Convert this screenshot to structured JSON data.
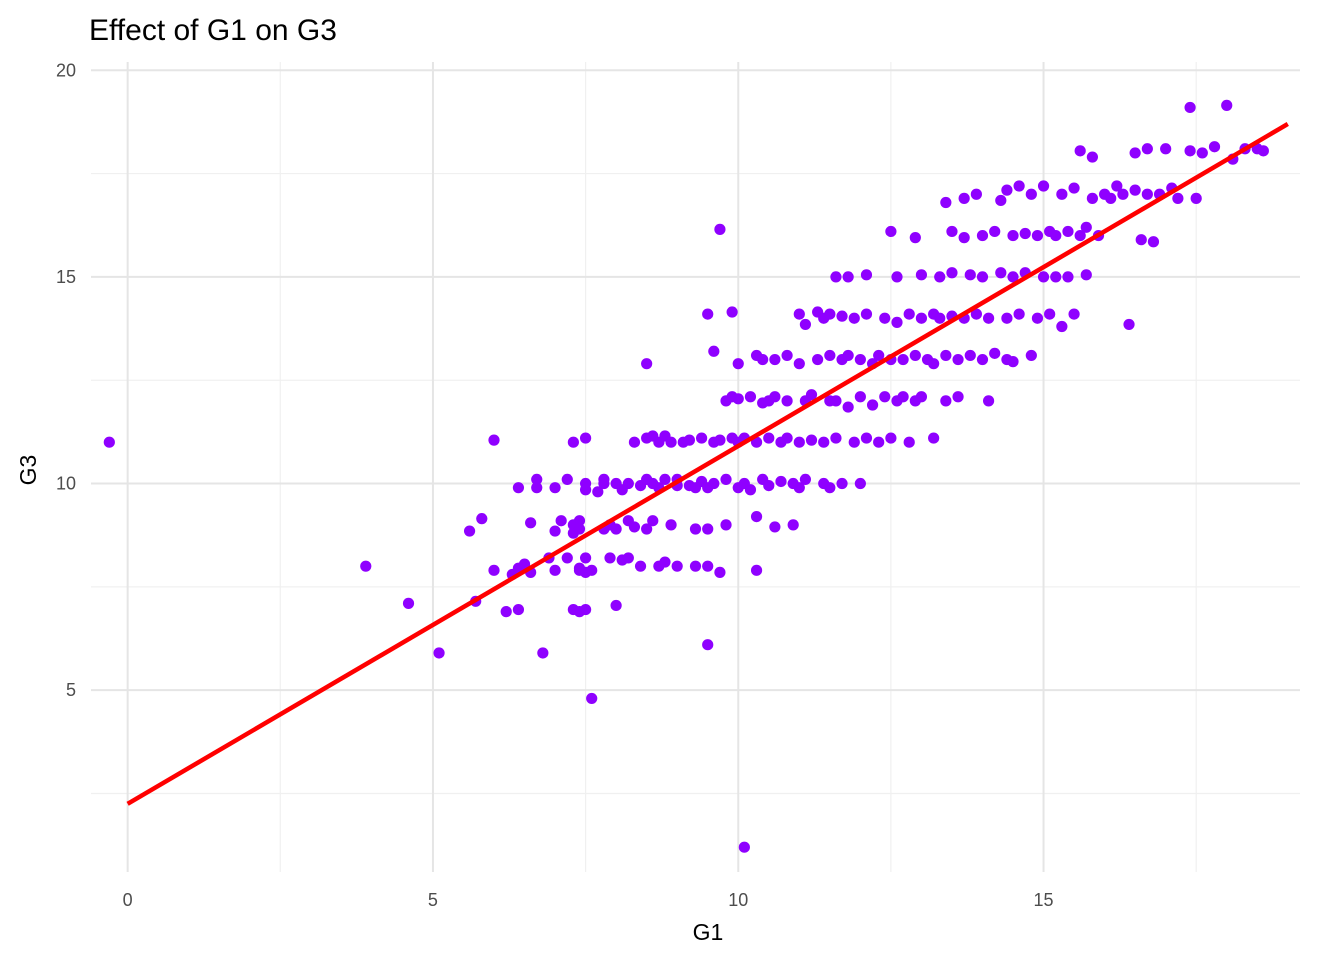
{
  "chart_data": {
    "type": "scatter",
    "title": "Effect of G1 on G3",
    "xlabel": "G1",
    "ylabel": "G3",
    "xlim": [
      -0.6,
      19.2
    ],
    "ylim": [
      0.6,
      20.2
    ],
    "x_ticks": [
      0,
      5,
      10,
      15
    ],
    "y_ticks": [
      5,
      10,
      15,
      20
    ],
    "grid": true,
    "legend": "none",
    "colors": {
      "points": "#8f00ff",
      "fit_line": "#ff0000",
      "grid": "#e5e5e5"
    },
    "fit_line": {
      "x": [
        0,
        19
      ],
      "y": [
        2.25,
        18.7
      ]
    },
    "series": [
      {
        "points": [
          [
            -0.3,
            11.0
          ],
          [
            3.9,
            8.0
          ],
          [
            4.6,
            7.1
          ],
          [
            5.1,
            5.9
          ],
          [
            5.6,
            8.85
          ],
          [
            5.7,
            7.15
          ],
          [
            5.8,
            9.15
          ],
          [
            6.0,
            11.05
          ],
          [
            6.0,
            7.9
          ],
          [
            6.2,
            6.9
          ],
          [
            6.3,
            7.8
          ],
          [
            6.4,
            7.95
          ],
          [
            6.4,
            6.95
          ],
          [
            6.4,
            9.9
          ],
          [
            6.5,
            8.0
          ],
          [
            6.5,
            8.05
          ],
          [
            6.6,
            7.85
          ],
          [
            6.6,
            9.05
          ],
          [
            6.7,
            9.9
          ],
          [
            6.7,
            10.1
          ],
          [
            6.8,
            5.9
          ],
          [
            6.9,
            8.2
          ],
          [
            7.0,
            9.9
          ],
          [
            7.0,
            8.85
          ],
          [
            7.0,
            7.9
          ],
          [
            7.1,
            9.1
          ],
          [
            7.2,
            10.1
          ],
          [
            7.2,
            8.2
          ],
          [
            7.3,
            8.8
          ],
          [
            7.3,
            9.0
          ],
          [
            7.3,
            6.95
          ],
          [
            7.3,
            11.0
          ],
          [
            7.4,
            6.9
          ],
          [
            7.4,
            9.1
          ],
          [
            7.4,
            8.9
          ],
          [
            7.4,
            7.9
          ],
          [
            7.4,
            7.95
          ],
          [
            7.5,
            8.2
          ],
          [
            7.5,
            11.1
          ],
          [
            7.5,
            7.85
          ],
          [
            7.5,
            10.0
          ],
          [
            7.5,
            9.85
          ],
          [
            7.5,
            6.95
          ],
          [
            7.6,
            4.8
          ],
          [
            7.6,
            7.9
          ],
          [
            7.7,
            9.8
          ],
          [
            7.8,
            10.0
          ],
          [
            7.8,
            8.9
          ],
          [
            7.8,
            10.1
          ],
          [
            7.9,
            9.0
          ],
          [
            7.9,
            8.2
          ],
          [
            8.0,
            10.0
          ],
          [
            8.0,
            8.9
          ],
          [
            8.0,
            7.05
          ],
          [
            8.1,
            8.15
          ],
          [
            8.1,
            9.85
          ],
          [
            8.2,
            8.2
          ],
          [
            8.2,
            10.0
          ],
          [
            8.2,
            9.1
          ],
          [
            8.3,
            8.95
          ],
          [
            8.3,
            11.0
          ],
          [
            8.4,
            9.95
          ],
          [
            8.4,
            8.0
          ],
          [
            8.5,
            10.1
          ],
          [
            8.5,
            8.9
          ],
          [
            8.5,
            11.1
          ],
          [
            8.5,
            12.9
          ],
          [
            8.6,
            11.15
          ],
          [
            8.6,
            10.0
          ],
          [
            8.6,
            9.1
          ],
          [
            8.7,
            11.0
          ],
          [
            8.7,
            8.0
          ],
          [
            8.7,
            9.9
          ],
          [
            8.8,
            10.1
          ],
          [
            8.8,
            11.15
          ],
          [
            8.8,
            8.1
          ],
          [
            8.9,
            9.0
          ],
          [
            8.9,
            11.0
          ],
          [
            9.0,
            9.95
          ],
          [
            9.0,
            10.1
          ],
          [
            9.0,
            8.0
          ],
          [
            9.1,
            11.0
          ],
          [
            9.2,
            9.95
          ],
          [
            9.2,
            11.05
          ],
          [
            9.3,
            8.0
          ],
          [
            9.3,
            9.9
          ],
          [
            9.3,
            8.9
          ],
          [
            9.4,
            10.05
          ],
          [
            9.4,
            11.1
          ],
          [
            9.5,
            14.1
          ],
          [
            9.5,
            6.1
          ],
          [
            9.5,
            8.0
          ],
          [
            9.5,
            9.9
          ],
          [
            9.5,
            8.9
          ],
          [
            9.6,
            13.2
          ],
          [
            9.6,
            11.0
          ],
          [
            9.6,
            10.0
          ],
          [
            9.7,
            16.15
          ],
          [
            9.7,
            7.85
          ],
          [
            9.7,
            11.05
          ],
          [
            9.8,
            9.0
          ],
          [
            9.8,
            10.1
          ],
          [
            9.8,
            12.0
          ],
          [
            9.9,
            14.15
          ],
          [
            9.9,
            11.1
          ],
          [
            9.9,
            12.1
          ],
          [
            10.0,
            11.0
          ],
          [
            10.0,
            9.9
          ],
          [
            10.0,
            12.9
          ],
          [
            10.0,
            12.05
          ],
          [
            10.1,
            1.2
          ],
          [
            10.1,
            11.1
          ],
          [
            10.1,
            10.0
          ],
          [
            10.2,
            9.85
          ],
          [
            10.2,
            12.1
          ],
          [
            10.3,
            13.1
          ],
          [
            10.3,
            9.2
          ],
          [
            10.3,
            7.9
          ],
          [
            10.3,
            11.0
          ],
          [
            10.4,
            13.0
          ],
          [
            10.4,
            11.95
          ],
          [
            10.4,
            10.1
          ],
          [
            10.5,
            12.0
          ],
          [
            10.5,
            11.1
          ],
          [
            10.5,
            9.95
          ],
          [
            10.6,
            13.0
          ],
          [
            10.6,
            8.95
          ],
          [
            10.6,
            12.1
          ],
          [
            10.7,
            11.0
          ],
          [
            10.7,
            10.05
          ],
          [
            10.8,
            13.1
          ],
          [
            10.8,
            12.0
          ],
          [
            10.8,
            11.1
          ],
          [
            10.9,
            9.0
          ],
          [
            10.9,
            10.0
          ],
          [
            11.0,
            12.9
          ],
          [
            11.0,
            11.0
          ],
          [
            11.0,
            14.1
          ],
          [
            11.0,
            9.9
          ],
          [
            11.1,
            12.0
          ],
          [
            11.1,
            13.85
          ],
          [
            11.1,
            10.1
          ],
          [
            11.2,
            11.05
          ],
          [
            11.2,
            12.15
          ],
          [
            11.3,
            14.15
          ],
          [
            11.3,
            13.0
          ],
          [
            11.4,
            10.0
          ],
          [
            11.4,
            11.0
          ],
          [
            11.4,
            14.0
          ],
          [
            11.5,
            12.0
          ],
          [
            11.5,
            13.1
          ],
          [
            11.5,
            14.1
          ],
          [
            11.5,
            9.9
          ],
          [
            11.6,
            15.0
          ],
          [
            11.6,
            11.1
          ],
          [
            11.6,
            12.0
          ],
          [
            11.7,
            13.0
          ],
          [
            11.7,
            14.05
          ],
          [
            11.7,
            10.0
          ],
          [
            11.8,
            15.0
          ],
          [
            11.8,
            11.85
          ],
          [
            11.8,
            13.1
          ],
          [
            11.9,
            14.0
          ],
          [
            11.9,
            11.0
          ],
          [
            12.0,
            12.1
          ],
          [
            12.0,
            13.0
          ],
          [
            12.0,
            10.0
          ],
          [
            12.1,
            11.1
          ],
          [
            12.1,
            15.05
          ],
          [
            12.1,
            14.1
          ],
          [
            12.2,
            12.9
          ],
          [
            12.2,
            11.9
          ],
          [
            12.3,
            13.1
          ],
          [
            12.3,
            11.0
          ],
          [
            12.4,
            12.1
          ],
          [
            12.4,
            14.0
          ],
          [
            12.5,
            13.0
          ],
          [
            12.5,
            16.1
          ],
          [
            12.5,
            11.1
          ],
          [
            12.6,
            12.0
          ],
          [
            12.6,
            15.0
          ],
          [
            12.6,
            13.9
          ],
          [
            12.7,
            13.0
          ],
          [
            12.7,
            12.1
          ],
          [
            12.8,
            14.1
          ],
          [
            12.8,
            11.0
          ],
          [
            12.9,
            12.0
          ],
          [
            12.9,
            15.95
          ],
          [
            12.9,
            13.1
          ],
          [
            13.0,
            14.0
          ],
          [
            13.0,
            15.05
          ],
          [
            13.0,
            12.1
          ],
          [
            13.1,
            13.0
          ],
          [
            13.2,
            14.1
          ],
          [
            13.2,
            11.1
          ],
          [
            13.2,
            12.9
          ],
          [
            13.3,
            15.0
          ],
          [
            13.3,
            14.0
          ],
          [
            13.4,
            16.8
          ],
          [
            13.4,
            12.0
          ],
          [
            13.4,
            13.1
          ],
          [
            13.5,
            15.1
          ],
          [
            13.5,
            16.1
          ],
          [
            13.5,
            14.05
          ],
          [
            13.6,
            12.1
          ],
          [
            13.6,
            13.0
          ],
          [
            13.7,
            14.0
          ],
          [
            13.7,
            15.95
          ],
          [
            13.7,
            16.9
          ],
          [
            13.8,
            13.1
          ],
          [
            13.8,
            15.05
          ],
          [
            13.9,
            14.1
          ],
          [
            13.9,
            17.0
          ],
          [
            14.0,
            16.0
          ],
          [
            14.0,
            13.0
          ],
          [
            14.0,
            15.0
          ],
          [
            14.1,
            14.0
          ],
          [
            14.1,
            12.0
          ],
          [
            14.2,
            16.1
          ],
          [
            14.2,
            13.15
          ],
          [
            14.3,
            15.1
          ],
          [
            14.3,
            16.85
          ],
          [
            14.4,
            14.0
          ],
          [
            14.4,
            13.0
          ],
          [
            14.4,
            17.1
          ],
          [
            14.5,
            15.0
          ],
          [
            14.5,
            16.0
          ],
          [
            14.5,
            12.95
          ],
          [
            14.6,
            14.1
          ],
          [
            14.6,
            17.2
          ],
          [
            14.7,
            16.05
          ],
          [
            14.7,
            15.1
          ],
          [
            14.8,
            13.1
          ],
          [
            14.8,
            17.0
          ],
          [
            14.9,
            16.0
          ],
          [
            14.9,
            14.0
          ],
          [
            15.0,
            17.2
          ],
          [
            15.0,
            15.0
          ],
          [
            15.1,
            16.1
          ],
          [
            15.1,
            14.1
          ],
          [
            15.2,
            16.0
          ],
          [
            15.2,
            15.0
          ],
          [
            15.3,
            17.0
          ],
          [
            15.3,
            13.8
          ],
          [
            15.4,
            16.1
          ],
          [
            15.4,
            15.0
          ],
          [
            15.5,
            17.15
          ],
          [
            15.5,
            14.1
          ],
          [
            15.6,
            16.0
          ],
          [
            15.6,
            18.05
          ],
          [
            15.7,
            16.2
          ],
          [
            15.7,
            15.05
          ],
          [
            15.8,
            16.9
          ],
          [
            15.8,
            17.9
          ],
          [
            15.9,
            16.0
          ],
          [
            16.0,
            17.0
          ],
          [
            16.1,
            16.9
          ],
          [
            16.2,
            17.2
          ],
          [
            16.3,
            17.0
          ],
          [
            16.4,
            13.85
          ],
          [
            16.5,
            18.0
          ],
          [
            16.5,
            17.1
          ],
          [
            16.6,
            15.9
          ],
          [
            16.7,
            17.0
          ],
          [
            16.7,
            18.1
          ],
          [
            16.8,
            15.85
          ],
          [
            16.9,
            17.0
          ],
          [
            17.0,
            18.1
          ],
          [
            17.1,
            17.15
          ],
          [
            17.2,
            16.9
          ],
          [
            17.4,
            19.1
          ],
          [
            17.4,
            18.05
          ],
          [
            17.5,
            16.9
          ],
          [
            17.6,
            18.0
          ],
          [
            17.8,
            18.15
          ],
          [
            18.0,
            19.15
          ],
          [
            18.1,
            17.85
          ],
          [
            18.3,
            18.1
          ],
          [
            18.5,
            18.1
          ],
          [
            18.6,
            18.05
          ]
        ]
      }
    ]
  }
}
